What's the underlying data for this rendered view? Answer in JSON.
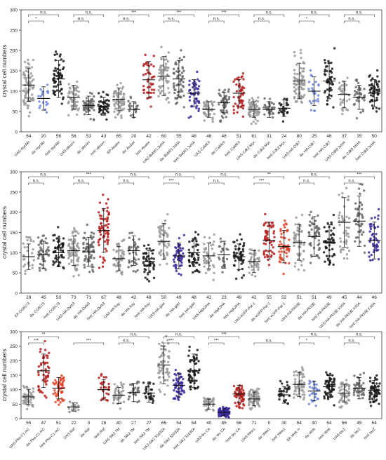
{
  "chart_data": [
    {
      "type": "scatter",
      "ylabel": "crystal cell numbers",
      "ylim": [
        0,
        300
      ],
      "yticks": [
        0,
        50,
        100,
        150,
        200,
        250,
        300
      ],
      "grid": false,
      "categories": [
        "UAS-myrAkt",
        "da::myrAkt",
        "hml::myrAkt",
        "UAS-alicorn",
        "da::alicorn",
        "hml::alicorn",
        "EP-Asator",
        "da::Asator",
        "hml::Asator",
        "UAS-BubR1 3xHA",
        "da::BubR1 3xHA",
        "hml::BubR1 3xHA",
        "UAS-CaMKII",
        "da::CaMKII",
        "hml::CaMKII",
        "UAS-Cdk2-Myc",
        "da::Cdk2-Myc",
        "hml::Cdk2-Myc",
        "UAS-HA-Cdk7",
        "da::HA-Cdk7",
        "hml::HA-Cdk7",
        "UAS-Cdk8 3xHA",
        "da::Cdk8 3xHA",
        "hml::Cdk8 3xHA"
      ],
      "n": [
        84,
        20,
        56,
        56,
        53,
        43,
        65,
        20,
        42,
        60,
        55,
        48,
        46,
        48,
        51,
        61,
        31,
        24,
        80,
        25,
        46,
        37,
        35,
        50
      ],
      "means": [
        115,
        82,
        130,
        85,
        65,
        63,
        80,
        55,
        128,
        137,
        130,
        95,
        55,
        72,
        95,
        55,
        55,
        58,
        125,
        100,
        125,
        92,
        85,
        95
      ],
      "colors": [
        "#9a9a9a",
        "#6d86d8",
        "#1a1a1a",
        "#9a9a9a",
        "#6a6a6a",
        "#1a1a1a",
        "#9a9a9a",
        "#6a6a6a",
        "#b51f1f",
        "#9a9a9a",
        "#6a6a6a",
        "#3a2a9a",
        "#9a9a9a",
        "#6a6a6a",
        "#b51f1f",
        "#9a9a9a",
        "#6a6a6a",
        "#1a1a1a",
        "#9a9a9a",
        "#6d86d8",
        "#1a1a1a",
        "#9a9a9a",
        "#6a6a6a",
        "#1a1a1a"
      ],
      "comparisons": [
        {
          "from": 0,
          "to": 1,
          "label": "*"
        },
        {
          "from": 0,
          "to": 2,
          "label": "n.s."
        },
        {
          "from": 3,
          "to": 4,
          "label": "n.s."
        },
        {
          "from": 3,
          "to": 5,
          "label": "n.s."
        },
        {
          "from": 6,
          "to": 7,
          "label": "n.s."
        },
        {
          "from": 6,
          "to": 8,
          "label": "***"
        },
        {
          "from": 9,
          "to": 10,
          "label": "n.s."
        },
        {
          "from": 9,
          "to": 11,
          "label": "***"
        },
        {
          "from": 12,
          "to": 13,
          "label": "n.s."
        },
        {
          "from": 12,
          "to": 14,
          "label": "***"
        },
        {
          "from": 15,
          "to": 16,
          "label": "n.s."
        },
        {
          "from": 15,
          "to": 17,
          "label": "n.s."
        },
        {
          "from": 18,
          "to": 19,
          "label": "*"
        },
        {
          "from": 18,
          "to": 20,
          "label": "n.s."
        },
        {
          "from": 21,
          "to": 22,
          "label": "n.s."
        },
        {
          "from": 21,
          "to": 23,
          "label": "n.s."
        }
      ]
    },
    {
      "type": "scatter",
      "ylabel": "crystal cell numbers",
      "ylim": [
        0,
        300
      ],
      "yticks": [
        0,
        50,
        100,
        150,
        200,
        250,
        300
      ],
      "grid": false,
      "categories": [
        "EP-CG8173",
        "da::CG8173",
        "hml::CG8173",
        "UAS-HA-Dyrk3",
        "da::HA-Dyrk3",
        "hml::HA-Dyrk3",
        "UAS-HA-fray",
        "da::HA-fray",
        "hml::HA-fray",
        "UAS-HA-gskt",
        "da::HA-gskt",
        "hml::HA-gskt",
        "UAS-Hipk2HA",
        "da::Hipk2HA",
        "hml::Hipk2HA",
        "UAS-eGFP-Par-1",
        "da::eGFP-Par-1",
        "hml::eGFP-Par-1",
        "UAS-HA-Pk53E",
        "da::HA-Pk53E",
        "hml::HA-Pk53E",
        "UAS-HA-Pk53E K50A",
        "da::HA-Pk53E K50A",
        "hml::HA-Pk53E K50A"
      ],
      "n": [
        28,
        45,
        50,
        73,
        71,
        67,
        48,
        42,
        48,
        50,
        49,
        48,
        42,
        23,
        49,
        42,
        55,
        52,
        51,
        51,
        49,
        45,
        44,
        46
      ],
      "means": [
        90,
        95,
        100,
        105,
        102,
        155,
        85,
        105,
        78,
        128,
        92,
        100,
        92,
        95,
        90,
        78,
        130,
        115,
        125,
        140,
        125,
        175,
        178,
        130
      ],
      "colors": [
        "#9a9a9a",
        "#6a6a6a",
        "#1a1a1a",
        "#9a9a9a",
        "#6a6a6a",
        "#b51f1f",
        "#9a9a9a",
        "#6a6a6a",
        "#1a1a1a",
        "#9a9a9a",
        "#3a2a9a",
        "#1a1a1a",
        "#9a9a9a",
        "#6a6a6a",
        "#1a1a1a",
        "#9a9a9a",
        "#b51f1f",
        "#e0442a",
        "#9a9a9a",
        "#6a6a6a",
        "#1a1a1a",
        "#9a9a9a",
        "#6a6a6a",
        "#3a2a9a"
      ],
      "comparisons": [
        {
          "from": 0,
          "to": 1,
          "label": "n.s."
        },
        {
          "from": 0,
          "to": 2,
          "label": "n.s."
        },
        {
          "from": 3,
          "to": 4,
          "label": "n.s."
        },
        {
          "from": 3,
          "to": 5,
          "label": "***"
        },
        {
          "from": 6,
          "to": 7,
          "label": "n.s."
        },
        {
          "from": 6,
          "to": 8,
          "label": "n.s."
        },
        {
          "from": 9,
          "to": 10,
          "label": "***"
        },
        {
          "from": 9,
          "to": 11,
          "label": "n.s."
        },
        {
          "from": 12,
          "to": 13,
          "label": "n.s."
        },
        {
          "from": 12,
          "to": 14,
          "label": "n.s."
        },
        {
          "from": 15,
          "to": 16,
          "label": "***"
        },
        {
          "from": 15,
          "to": 17,
          "label": "**"
        },
        {
          "from": 18,
          "to": 19,
          "label": "n.s."
        },
        {
          "from": 18,
          "to": 20,
          "label": "n.s."
        },
        {
          "from": 21,
          "to": 22,
          "label": "n.s."
        },
        {
          "from": 21,
          "to": 23,
          "label": "***"
        }
      ]
    },
    {
      "type": "scatter",
      "ylabel": "crystal cell numbers",
      "ylim": [
        0,
        300
      ],
      "yticks": [
        0,
        50,
        100,
        150,
        200,
        250,
        300
      ],
      "grid": false,
      "categories": [
        "UAS-Pka-C1 mC",
        "da::Pka-C1 mC",
        "hml::Pka-C1 mC",
        "UAS-Raf",
        "da::Raf",
        "hml::Raf",
        "UAS-Sik2 TM",
        "da::Sik2 TM",
        "hml::Sik2 TM",
        "UAS-Sik2 S1032A",
        "da::Sik2 S1032A",
        "hml::Sik2 S1032A",
        "UAS-tkv CA",
        "da::tkv CA",
        "hml::tkv CA",
        "UAS-Wee1",
        "da::Wee1",
        "hml::Wee1",
        "EP-Wnk /+",
        "da::Wnk",
        "hml::Wnk",
        "UAS-lacZ",
        "da::lacZ",
        "hml::lacZ"
      ],
      "n": [
        55,
        47,
        51,
        22,
        0,
        26,
        40,
        27,
        27,
        65,
        54,
        54,
        40,
        85,
        56,
        71,
        0,
        30,
        54,
        30,
        54,
        56,
        45,
        54
      ],
      "means": [
        75,
        165,
        105,
        40,
        null,
        100,
        80,
        90,
        88,
        185,
        115,
        165,
        50,
        22,
        85,
        68,
        null,
        82,
        118,
        95,
        110,
        88,
        105,
        98
      ],
      "colors": [
        "#9a9a9a",
        "#b51f1f",
        "#e0442a",
        "#9a9a9a",
        "#6a6a6a",
        "#b51f1f",
        "#9a9a9a",
        "#6a6a6a",
        "#1a1a1a",
        "#9a9a9a",
        "#3a2a9a",
        "#1a1a1a",
        "#9a9a9a",
        "#3a2a9a",
        "#b51f1f",
        "#9a9a9a",
        "#6a6a6a",
        "#1a1a1a",
        "#9a9a9a",
        "#6d86d8",
        "#1a1a1a",
        "#9a9a9a",
        "#6a6a6a",
        "#1a1a1a"
      ],
      "comparisons": [
        {
          "from": 0,
          "to": 1,
          "label": "***"
        },
        {
          "from": 0,
          "to": 2,
          "label": "**"
        },
        {
          "from": 3,
          "to": 5,
          "label": "***"
        },
        {
          "from": 6,
          "to": 7,
          "label": "n.s."
        },
        {
          "from": 6,
          "to": 8,
          "label": "n.s."
        },
        {
          "from": 9,
          "to": 10,
          "label": "***"
        },
        {
          "from": 9,
          "to": 11,
          "label": "n.s."
        },
        {
          "from": 12,
          "to": 13,
          "label": "***"
        },
        {
          "from": 12,
          "to": 14,
          "label": "***"
        },
        {
          "from": 15,
          "to": 17,
          "label": "n.s."
        },
        {
          "from": 18,
          "to": 19,
          "label": "*"
        },
        {
          "from": 18,
          "to": 20,
          "label": "n.s."
        },
        {
          "from": 21,
          "to": 22,
          "label": "n.s."
        },
        {
          "from": 21,
          "to": 23,
          "label": "n.s."
        }
      ]
    }
  ]
}
